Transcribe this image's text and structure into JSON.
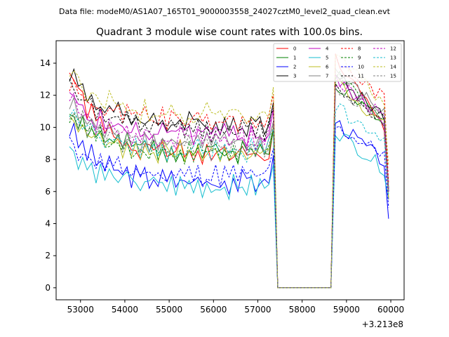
{
  "suptitle": "Data file: modeM0/AS1A07_165T01_9000003558_24027cztM0_level2_quad_clean.evt",
  "chart_data": {
    "type": "line",
    "title": "Quadrant 3 module wise count rates with 100.0s bins.",
    "xlabel": "",
    "ylabel": "",
    "x_offset_label": "+3.213e8",
    "xlim": [
      52450,
      60300
    ],
    "ylim": [
      -0.75,
      15.4
    ],
    "xticks": [
      53000,
      54000,
      55000,
      56000,
      57000,
      58000,
      59000,
      60000
    ],
    "xtick_labels": [
      "53000",
      "54000",
      "55000",
      "56000",
      "57000",
      "58000",
      "59000",
      "60000"
    ],
    "yticks": [
      0,
      2,
      4,
      6,
      8,
      10,
      12,
      14
    ],
    "ytick_labels": [
      "0",
      "2",
      "4",
      "6",
      "8",
      "10",
      "12",
      "14"
    ],
    "legend_position": "top-right",
    "note": "x values in seconds relative to offset 3.213e8; y in counts/s. Per-bin values estimated from plot.",
    "phases": {
      "active1": [
        52750,
        57350
      ],
      "gap": [
        57450,
        58650
      ],
      "active2": [
        58750,
        59950
      ]
    },
    "series": [
      {
        "name": "0",
        "color": "#ff0000",
        "dash": "solid",
        "start": 13.6,
        "base": 8.3,
        "b2start": 14.3,
        "b2end": 9.5,
        "end": 5.5
      },
      {
        "name": "1",
        "color": "#008000",
        "dash": "solid",
        "start": 11.2,
        "base": 8.5,
        "b2start": 12.8,
        "b2end": 10.0,
        "end": 6.0
      },
      {
        "name": "2",
        "color": "#0000ff",
        "dash": "solid",
        "start": 10.0,
        "base": 6.6,
        "b2start": 10.4,
        "b2end": 7.6,
        "end": 4.3
      },
      {
        "name": "3",
        "color": "#000000",
        "dash": "solid",
        "start": 13.6,
        "base": 10.2,
        "b2start": 13.2,
        "b2end": 10.5,
        "end": 6.0
      },
      {
        "name": "4",
        "color": "#bf00bf",
        "dash": "solid",
        "start": 12.0,
        "base": 9.5,
        "b2start": 13.0,
        "b2end": 10.2,
        "end": 6.0
      },
      {
        "name": "5",
        "color": "#17becf",
        "dash": "solid",
        "start": 8.8,
        "base": 6.3,
        "b2start": 9.8,
        "b2end": 7.2,
        "end": 5.5
      },
      {
        "name": "6",
        "color": "#bcbd22",
        "dash": "solid",
        "start": 10.9,
        "base": 8.4,
        "b2start": 13.0,
        "b2end": 9.8,
        "end": 5.6
      },
      {
        "name": "7",
        "color": "#808080",
        "dash": "solid",
        "start": 11.5,
        "base": 9.0,
        "b2start": 13.5,
        "b2end": 10.6,
        "end": 6.2
      },
      {
        "name": "8",
        "color": "#ff0000",
        "dash": "dashed",
        "start": 12.8,
        "base": 10.4,
        "b2start": 14.2,
        "b2end": 11.6,
        "end": 6.5
      },
      {
        "name": "9",
        "color": "#008000",
        "dash": "dashed",
        "start": 11.0,
        "base": 8.4,
        "b2start": 13.3,
        "b2end": 10.0,
        "end": 6.2
      },
      {
        "name": "10",
        "color": "#0000ff",
        "dash": "dashed",
        "start": 9.2,
        "base": 7.0,
        "b2start": 10.0,
        "b2end": 8.2,
        "end": 5.0
      },
      {
        "name": "11",
        "color": "#000000",
        "dash": "dashed",
        "start": 13.0,
        "base": 9.8,
        "b2start": 12.5,
        "b2end": 10.4,
        "end": 6.0
      },
      {
        "name": "12",
        "color": "#bf00bf",
        "dash": "dashed",
        "start": 11.8,
        "base": 9.3,
        "b2start": 13.0,
        "b2end": 10.6,
        "end": 6.0
      },
      {
        "name": "13",
        "color": "#17becf",
        "dash": "dashed",
        "start": 11.0,
        "base": 8.5,
        "b2start": 11.2,
        "b2end": 9.2,
        "end": 5.8
      },
      {
        "name": "14",
        "color": "#bcbd22",
        "dash": "dashed",
        "start": 13.7,
        "base": 10.8,
        "b2start": 14.5,
        "b2end": 11.2,
        "end": 7.6
      },
      {
        "name": "15",
        "color": "#808080",
        "dash": "dashed",
        "start": 11.2,
        "base": 8.8,
        "b2start": 12.2,
        "b2end": 10.2,
        "end": 6.0
      }
    ]
  }
}
